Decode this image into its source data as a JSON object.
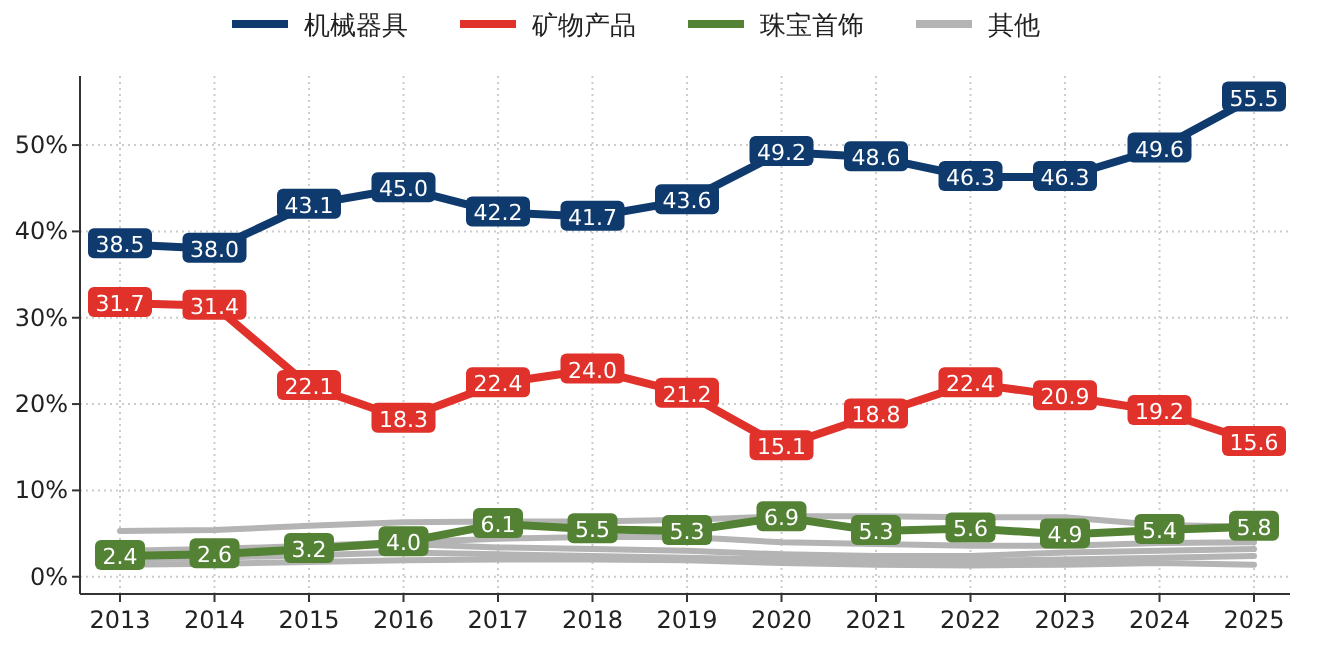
{
  "chart_data": {
    "type": "line",
    "categories": [
      "2013",
      "2014",
      "2015",
      "2016",
      "2017",
      "2018",
      "2019",
      "2020",
      "2021",
      "2022",
      "2023",
      "2024",
      "2025"
    ],
    "ylim": [
      -2,
      58
    ],
    "yticks": [
      {
        "value": 0,
        "label": "0%"
      },
      {
        "value": 10,
        "label": "10%"
      },
      {
        "value": 20,
        "label": "20%"
      },
      {
        "value": 30,
        "label": "30%"
      },
      {
        "value": 40,
        "label": "40%"
      },
      {
        "value": 50,
        "label": "50%"
      }
    ],
    "grid": true,
    "legend": "top",
    "series": [
      {
        "name": "其他",
        "color": "#b4b4b4",
        "values": [
          5.3,
          5.4,
          5.9,
          6.3,
          6.4,
          6.4,
          6.6,
          7.0,
          7.0,
          6.9,
          6.9,
          6.0,
          5.8
        ]
      },
      {
        "color": "#b4b4b4",
        "values": [
          3.0,
          3.2,
          3.6,
          4.0,
          4.4,
          4.6,
          4.6,
          4.0,
          3.8,
          3.6,
          3.6,
          3.9,
          4.0
        ]
      },
      {
        "color": "#b4b4b4",
        "values": [
          2.6,
          2.8,
          3.2,
          3.8,
          3.4,
          3.2,
          3.0,
          2.6,
          2.4,
          2.4,
          2.8,
          3.0,
          3.2
        ]
      },
      {
        "color": "#b4b4b4",
        "values": [
          2.0,
          2.2,
          2.5,
          2.8,
          2.6,
          2.4,
          2.2,
          2.0,
          1.9,
          1.8,
          2.0,
          2.2,
          2.4
        ]
      },
      {
        "color": "#b4b4b4",
        "values": [
          1.4,
          1.5,
          1.7,
          1.9,
          2.0,
          2.0,
          1.9,
          1.6,
          1.4,
          1.3,
          1.4,
          1.6,
          1.4
        ]
      },
      {
        "name": "机械器具",
        "color": "#0e3a6e",
        "marker": "square",
        "values": [
          38.5,
          38.0,
          43.1,
          45.0,
          42.2,
          41.7,
          43.6,
          49.2,
          48.6,
          46.3,
          46.3,
          49.6,
          55.5
        ],
        "value_labels": [
          "38.5",
          "38.0",
          "43.1",
          "45.0",
          "42.2",
          "41.7",
          "43.6",
          "49.2",
          "48.6",
          "46.3",
          "46.3",
          "49.6",
          "55.5"
        ]
      },
      {
        "name": "矿物产品",
        "color": "#e0312a",
        "marker": "square",
        "values": [
          31.7,
          31.4,
          22.1,
          18.3,
          22.4,
          24.0,
          21.2,
          15.1,
          18.8,
          22.4,
          20.9,
          19.2,
          15.6
        ],
        "value_labels": [
          "31.7",
          "31.4",
          "22.1",
          "18.3",
          "22.4",
          "24.0",
          "21.2",
          "15.1",
          "18.8",
          "22.4",
          "20.9",
          "19.2",
          "15.6"
        ]
      },
      {
        "name": "珠宝首饰",
        "color": "#548235",
        "marker": "square",
        "values": [
          2.4,
          2.6,
          3.2,
          4.0,
          6.1,
          5.5,
          5.3,
          6.9,
          5.3,
          5.6,
          4.9,
          5.4,
          5.8
        ],
        "value_labels": [
          "2.4",
          "2.6",
          "3.2",
          "4.0",
          "6.1",
          "5.5",
          "5.3",
          "6.9",
          "5.3",
          "5.6",
          "4.9",
          "5.4",
          "5.8"
        ]
      }
    ]
  }
}
